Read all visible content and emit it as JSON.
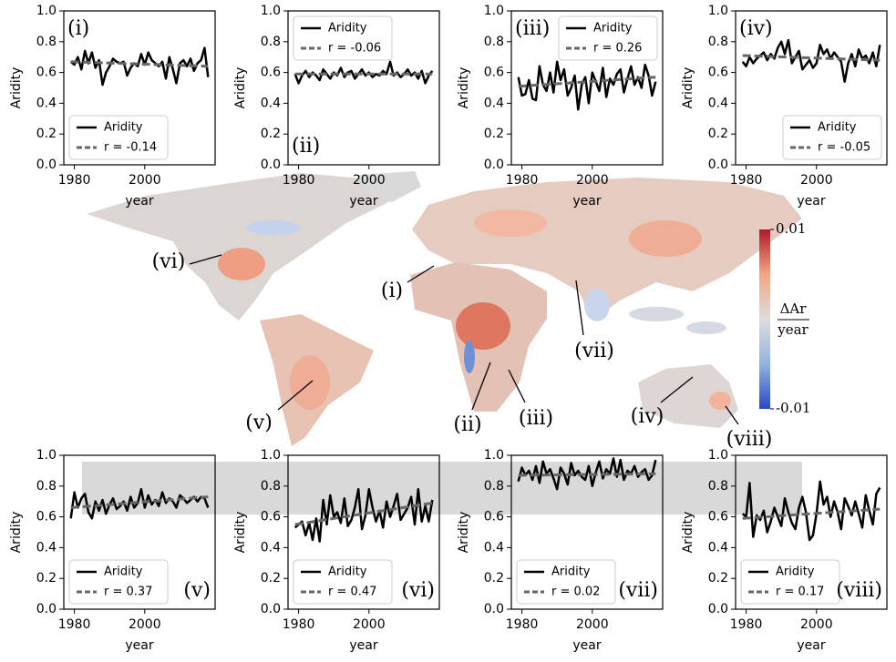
{
  "chart_data": [
    {
      "type": "line",
      "annotation": "(i)",
      "xlabel": "year",
      "ylabel": "Aridity",
      "legend": "lower left",
      "x": [
        1979,
        1980,
        1981,
        1982,
        1983,
        1984,
        1985,
        1986,
        1987,
        1988,
        1989,
        1990,
        1991,
        1992,
        1993,
        1994,
        1995,
        1996,
        1997,
        1998,
        1999,
        2000,
        2001,
        2002,
        2003,
        2004,
        2005,
        2006,
        2007,
        2008,
        2009,
        2010,
        2011,
        2012,
        2013,
        2014,
        2015,
        2016,
        2017,
        2018
      ],
      "series": [
        {
          "name": "Aridity",
          "color": "#000000",
          "values": [
            0.67,
            0.65,
            0.7,
            0.62,
            0.74,
            0.66,
            0.73,
            0.63,
            0.68,
            0.52,
            0.6,
            0.64,
            0.69,
            0.67,
            0.66,
            0.67,
            0.58,
            0.63,
            0.66,
            0.64,
            0.72,
            0.65,
            0.73,
            0.68,
            0.66,
            0.64,
            0.67,
            0.56,
            0.7,
            0.62,
            0.53,
            0.66,
            0.68,
            0.64,
            0.69,
            0.61,
            0.66,
            0.68,
            0.76,
            0.57
          ]
        },
        {
          "name": "r = -0.14",
          "color": "#666666",
          "dashed": true,
          "x": [
            1979,
            2018
          ],
          "values": [
            0.67,
            0.64
          ]
        }
      ],
      "xlim": [
        1977,
        2020
      ],
      "xticks": [
        1980,
        2000
      ],
      "ylim": [
        0,
        1
      ],
      "yticks": [
        {
          "value": 0,
          "label": "0.0"
        },
        0.2,
        0.4,
        0.6,
        0.8,
        {
          "value": 1,
          "label": "1.0"
        }
      ]
    },
    {
      "type": "line",
      "annotation": "(ii)",
      "xlabel": "year",
      "ylabel": "Aridity",
      "legend": "upper left",
      "x": [
        1979,
        1980,
        1981,
        1982,
        1983,
        1984,
        1985,
        1986,
        1987,
        1988,
        1989,
        1990,
        1991,
        1992,
        1993,
        1994,
        1995,
        1996,
        1997,
        1998,
        1999,
        2000,
        2001,
        2002,
        2003,
        2004,
        2005,
        2006,
        2007,
        2008,
        2009,
        2010,
        2011,
        2012,
        2013,
        2014,
        2015,
        2016,
        2017,
        2018
      ],
      "series": [
        {
          "name": "Aridity",
          "color": "#000000",
          "values": [
            0.59,
            0.53,
            0.58,
            0.61,
            0.57,
            0.6,
            0.58,
            0.55,
            0.62,
            0.59,
            0.56,
            0.6,
            0.58,
            0.63,
            0.57,
            0.6,
            0.61,
            0.56,
            0.59,
            0.62,
            0.58,
            0.6,
            0.57,
            0.59,
            0.58,
            0.61,
            0.59,
            0.67,
            0.58,
            0.6,
            0.57,
            0.59,
            0.62,
            0.58,
            0.6,
            0.56,
            0.61,
            0.53,
            0.58,
            0.61
          ]
        },
        {
          "name": "r = -0.06",
          "color": "#666666",
          "dashed": true,
          "x": [
            1979,
            2018
          ],
          "values": [
            0.59,
            0.59
          ]
        }
      ],
      "xlim": [
        1977,
        2020
      ],
      "xticks": [
        1980,
        2000
      ],
      "ylim": [
        0,
        1
      ],
      "yticks": [
        {
          "value": 0,
          "label": "0.0"
        },
        0.2,
        0.4,
        0.6,
        0.8,
        {
          "value": 1,
          "label": "1.0"
        }
      ]
    },
    {
      "type": "line",
      "annotation": "(iii)",
      "xlabel": "year",
      "ylabel": "Aridity",
      "legend": "upper right",
      "x": [
        1979,
        1980,
        1981,
        1982,
        1983,
        1984,
        1985,
        1986,
        1987,
        1988,
        1989,
        1990,
        1991,
        1992,
        1993,
        1994,
        1995,
        1996,
        1997,
        1998,
        1999,
        2000,
        2001,
        2002,
        2003,
        2004,
        2005,
        2006,
        2007,
        2008,
        2009,
        2010,
        2011,
        2012,
        2013,
        2014,
        2015,
        2016,
        2017,
        2018
      ],
      "series": [
        {
          "name": "Aridity",
          "color": "#000000",
          "values": [
            0.57,
            0.45,
            0.46,
            0.55,
            0.43,
            0.42,
            0.64,
            0.52,
            0.48,
            0.6,
            0.47,
            0.67,
            0.55,
            0.62,
            0.45,
            0.5,
            0.58,
            0.36,
            0.52,
            0.57,
            0.4,
            0.6,
            0.54,
            0.48,
            0.63,
            0.44,
            0.56,
            0.52,
            0.59,
            0.62,
            0.47,
            0.56,
            0.64,
            0.52,
            0.57,
            0.5,
            0.65,
            0.58,
            0.45,
            0.54
          ]
        },
        {
          "name": "r = 0.26",
          "color": "#666666",
          "dashed": true,
          "x": [
            1979,
            2018
          ],
          "values": [
            0.51,
            0.57
          ]
        }
      ],
      "xlim": [
        1977,
        2020
      ],
      "xticks": [
        1980,
        2000
      ],
      "ylim": [
        0,
        1
      ],
      "yticks": [
        {
          "value": 0,
          "label": "0.0"
        },
        0.2,
        0.4,
        0.6,
        0.8,
        {
          "value": 1,
          "label": "1.0"
        }
      ]
    },
    {
      "type": "line",
      "annotation": "(iv)",
      "xlabel": "year",
      "ylabel": "Aridity",
      "legend": "lower right",
      "x": [
        1979,
        1980,
        1981,
        1982,
        1983,
        1984,
        1985,
        1986,
        1987,
        1988,
        1989,
        1990,
        1991,
        1992,
        1993,
        1994,
        1995,
        1996,
        1997,
        1998,
        1999,
        2000,
        2001,
        2002,
        2003,
        2004,
        2005,
        2006,
        2007,
        2008,
        2009,
        2010,
        2011,
        2012,
        2013,
        2014,
        2015,
        2016,
        2017,
        2018
      ],
      "series": [
        {
          "name": "Aridity",
          "color": "#000000",
          "values": [
            0.67,
            0.64,
            0.7,
            0.66,
            0.69,
            0.71,
            0.73,
            0.68,
            0.72,
            0.69,
            0.76,
            0.8,
            0.72,
            0.81,
            0.66,
            0.7,
            0.74,
            0.62,
            0.65,
            0.68,
            0.63,
            0.66,
            0.78,
            0.72,
            0.75,
            0.69,
            0.73,
            0.7,
            0.67,
            0.54,
            0.66,
            0.72,
            0.64,
            0.75,
            0.69,
            0.71,
            0.66,
            0.73,
            0.64,
            0.78
          ]
        },
        {
          "name": "r = -0.05",
          "color": "#666666",
          "dashed": true,
          "x": [
            1979,
            2018
          ],
          "values": [
            0.71,
            0.68
          ]
        }
      ],
      "xlim": [
        1977,
        2020
      ],
      "xticks": [
        1980,
        2000
      ],
      "ylim": [
        0,
        1
      ],
      "yticks": [
        {
          "value": 0,
          "label": "0.0"
        },
        0.2,
        0.4,
        0.6,
        0.8,
        {
          "value": 1,
          "label": "1.0"
        }
      ]
    },
    {
      "type": "line",
      "annotation": "(v)",
      "xlabel": "year",
      "ylabel": "Aridity",
      "legend": "lower left",
      "x": [
        1979,
        1980,
        1981,
        1982,
        1983,
        1984,
        1985,
        1986,
        1987,
        1988,
        1989,
        1990,
        1991,
        1992,
        1993,
        1994,
        1995,
        1996,
        1997,
        1998,
        1999,
        2000,
        2001,
        2002,
        2003,
        2004,
        2005,
        2006,
        2007,
        2008,
        2009,
        2010,
        2011,
        2012,
        2013,
        2014,
        2015,
        2016,
        2017,
        2018
      ],
      "series": [
        {
          "name": "Aridity",
          "color": "#000000",
          "values": [
            0.59,
            0.76,
            0.66,
            0.72,
            0.75,
            0.63,
            0.59,
            0.7,
            0.64,
            0.71,
            0.62,
            0.68,
            0.72,
            0.65,
            0.67,
            0.7,
            0.64,
            0.73,
            0.66,
            0.69,
            0.78,
            0.66,
            0.74,
            0.68,
            0.71,
            0.67,
            0.76,
            0.69,
            0.72,
            0.7,
            0.66,
            0.74,
            0.72,
            0.69,
            0.71,
            0.73,
            0.7,
            0.73,
            0.72,
            0.66
          ]
        },
        {
          "name": "r = 0.37",
          "color": "#666666",
          "dashed": true,
          "x": [
            1979,
            2018
          ],
          "values": [
            0.66,
            0.73
          ]
        }
      ],
      "xlim": [
        1977,
        2020
      ],
      "xticks": [
        1980,
        2000
      ],
      "ylim": [
        0,
        1
      ],
      "yticks": [
        {
          "value": 0,
          "label": "0.0"
        },
        0.2,
        0.4,
        0.6,
        0.8,
        {
          "value": 1,
          "label": "1.0"
        }
      ]
    },
    {
      "type": "line",
      "annotation": "(vi)",
      "xlabel": "year",
      "ylabel": "Aridity",
      "legend": "lower left",
      "x": [
        1979,
        1980,
        1981,
        1982,
        1983,
        1984,
        1985,
        1986,
        1987,
        1988,
        1989,
        1990,
        1991,
        1992,
        1993,
        1994,
        1995,
        1996,
        1997,
        1998,
        1999,
        2000,
        2001,
        2002,
        2003,
        2004,
        2005,
        2006,
        2007,
        2008,
        2009,
        2010,
        2011,
        2012,
        2013,
        2014,
        2015,
        2016,
        2017,
        2018
      ],
      "series": [
        {
          "name": "Aridity",
          "color": "#000000",
          "values": [
            0.53,
            0.55,
            0.57,
            0.48,
            0.56,
            0.45,
            0.59,
            0.44,
            0.71,
            0.55,
            0.74,
            0.6,
            0.63,
            0.56,
            0.72,
            0.54,
            0.58,
            0.66,
            0.78,
            0.52,
            0.61,
            0.78,
            0.66,
            0.57,
            0.64,
            0.53,
            0.7,
            0.6,
            0.67,
            0.75,
            0.58,
            0.62,
            0.66,
            0.73,
            0.55,
            0.78,
            0.57,
            0.67,
            0.57,
            0.71
          ]
        },
        {
          "name": "r = 0.47",
          "color": "#666666",
          "dashed": true,
          "x": [
            1979,
            2018
          ],
          "values": [
            0.55,
            0.69
          ]
        }
      ],
      "xlim": [
        1977,
        2020
      ],
      "xticks": [
        1980,
        2000
      ],
      "ylim": [
        0,
        1
      ],
      "yticks": [
        {
          "value": 0,
          "label": "0.0"
        },
        0.2,
        0.4,
        0.6,
        0.8,
        {
          "value": 1,
          "label": "1.0"
        }
      ]
    },
    {
      "type": "line",
      "annotation": "(vii)",
      "xlabel": "year",
      "ylabel": "Aridity",
      "legend": "lower left",
      "x": [
        1979,
        1980,
        1981,
        1982,
        1983,
        1984,
        1985,
        1986,
        1987,
        1988,
        1989,
        1990,
        1991,
        1992,
        1993,
        1994,
        1995,
        1996,
        1997,
        1998,
        1999,
        2000,
        2001,
        2002,
        2003,
        2004,
        2005,
        2006,
        2007,
        2008,
        2009,
        2010,
        2011,
        2012,
        2013,
        2014,
        2015,
        2016,
        2017,
        2018
      ],
      "series": [
        {
          "name": "Aridity",
          "color": "#000000",
          "values": [
            0.83,
            0.92,
            0.87,
            0.9,
            0.84,
            0.93,
            0.82,
            0.96,
            0.88,
            0.91,
            0.85,
            0.78,
            0.92,
            0.88,
            0.81,
            0.95,
            0.87,
            0.9,
            0.86,
            0.84,
            0.93,
            0.8,
            0.89,
            0.96,
            0.85,
            0.91,
            0.88,
            0.98,
            0.86,
            0.97,
            0.84,
            0.9,
            0.88,
            0.93,
            0.86,
            0.89,
            0.91,
            0.84,
            0.87,
            0.97
          ]
        },
        {
          "name": "r = 0.02",
          "color": "#666666",
          "dashed": true,
          "x": [
            1979,
            2018
          ],
          "values": [
            0.87,
            0.88
          ]
        }
      ],
      "xlim": [
        1977,
        2020
      ],
      "xticks": [
        1980,
        2000
      ],
      "ylim": [
        0,
        1
      ],
      "yticks": [
        {
          "value": 0,
          "label": "0.0"
        },
        0.2,
        0.4,
        0.6,
        0.8,
        {
          "value": 1,
          "label": "1.0"
        }
      ]
    },
    {
      "type": "line",
      "annotation": "(viii)",
      "xlabel": "year",
      "ylabel": "Aridity",
      "legend": "lower left",
      "x": [
        1979,
        1980,
        1981,
        1982,
        1983,
        1984,
        1985,
        1986,
        1987,
        1988,
        1989,
        1990,
        1991,
        1992,
        1993,
        1994,
        1995,
        1996,
        1997,
        1998,
        1999,
        2000,
        2001,
        2002,
        2003,
        2004,
        2005,
        2006,
        2007,
        2008,
        2009,
        2010,
        2011,
        2012,
        2013,
        2014,
        2015,
        2016,
        2017,
        2018
      ],
      "series": [
        {
          "name": "Aridity",
          "color": "#000000",
          "values": [
            0.62,
            0.6,
            0.82,
            0.47,
            0.61,
            0.58,
            0.64,
            0.5,
            0.57,
            0.66,
            0.6,
            0.54,
            0.72,
            0.63,
            0.56,
            0.52,
            0.66,
            0.73,
            0.63,
            0.45,
            0.48,
            0.62,
            0.83,
            0.68,
            0.73,
            0.6,
            0.7,
            0.63,
            0.52,
            0.72,
            0.67,
            0.61,
            0.7,
            0.62,
            0.53,
            0.74,
            0.64,
            0.55,
            0.75,
            0.79
          ]
        },
        {
          "name": "r = 0.17",
          "color": "#666666",
          "dashed": true,
          "x": [
            1979,
            2018
          ],
          "values": [
            0.59,
            0.65
          ]
        }
      ],
      "xlim": [
        1977,
        2020
      ],
      "xticks": [
        1980,
        2000
      ],
      "ylim": [
        0,
        1
      ],
      "yticks": [
        {
          "value": 0,
          "label": "0.0"
        },
        0.2,
        0.4,
        0.6,
        0.8,
        {
          "value": 1,
          "label": "1.0"
        }
      ]
    }
  ],
  "map": {
    "region_labels": [
      "(vi)",
      "(i)",
      "(vii)",
      "(v)",
      "(ii)",
      "(iii)",
      "(iv)",
      "(viii)"
    ],
    "colorbar": {
      "lim": [
        -0.01,
        0.01
      ],
      "ticks": [
        0.01,
        -0.01
      ],
      "label_top": "ΔAr",
      "label_bottom": "year"
    }
  }
}
